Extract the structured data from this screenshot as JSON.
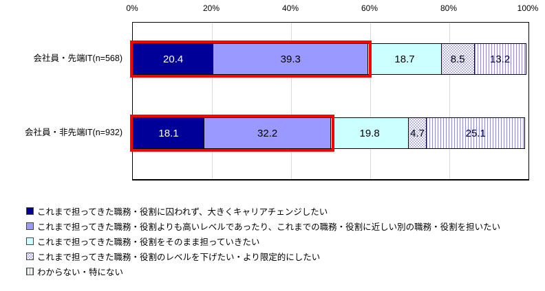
{
  "chart_data": {
    "type": "bar",
    "stacked": true,
    "orientation": "horizontal",
    "title": "",
    "xlabel": "",
    "ylabel": "",
    "x_axis": {
      "ticks": [
        "0%",
        "20%",
        "40%",
        "60%",
        "80%",
        "100%"
      ],
      "range": [
        0,
        100
      ],
      "gridlines_at": [
        20,
        40,
        60,
        80
      ]
    },
    "grid": true,
    "legend_position": "bottom-left",
    "categories": [
      "会社員・先端IT(n=568)",
      "会社員・非先端IT(n=932)"
    ],
    "series": [
      {
        "name": "これまで担ってきた職務・役割に囚われず、大きくキャリアチェンジしたい",
        "values": [
          20.4,
          18.1
        ],
        "color": "#000099",
        "pattern": "solid",
        "label_color": "#ffffff"
      },
      {
        "name": "これまで担ってきた職務・役割よりも高いレベルであったり、これまでの職務・役割に近しい別の職務・役割を担いたい",
        "values": [
          39.3,
          32.2
        ],
        "color": "#9999ff",
        "pattern": "solid",
        "label_color": "#000000"
      },
      {
        "name": "これまで担ってきた職務・役割をそのまま担っていきたい",
        "values": [
          18.7,
          19.8
        ],
        "color": "#ccffff",
        "pattern": "solid",
        "label_color": "#000000"
      },
      {
        "name": "これまで担ってきた職務・役割のレベルを下げたい・より限定的にしたい",
        "values": [
          8.5,
          4.7
        ],
        "color": "#9b9bee",
        "pattern": "dots",
        "label_color": "#000000"
      },
      {
        "name": "わからない・特にない",
        "values": [
          13.2,
          25.1
        ],
        "color": "#8a8aee",
        "pattern": "vstripes",
        "label_color": "#000000"
      }
    ],
    "highlight": {
      "color": "#ff0000",
      "series_indexes": [
        0,
        1
      ],
      "applies_to_rows": [
        0,
        1
      ]
    }
  }
}
